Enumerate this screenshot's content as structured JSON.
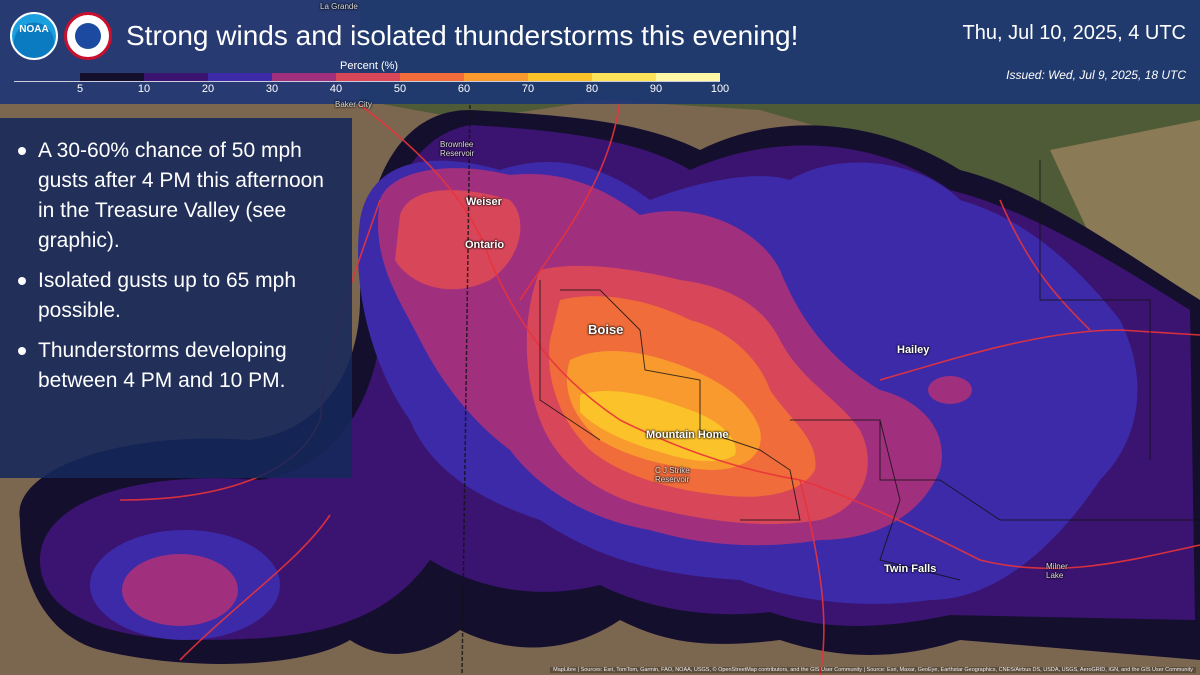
{
  "header": {
    "title": "Strong winds and isolated thunderstorms this evening!",
    "valid_time": "Thu, Jul 10, 2025, 4 UTC",
    "issued": "Issued: Wed, Jul 9, 2025, 18 UTC",
    "noaa_logo_text": "NOAA"
  },
  "legend": {
    "title": "Percent (%)",
    "ticks": [
      "5",
      "10",
      "20",
      "30",
      "40",
      "50",
      "60",
      "70",
      "80",
      "90",
      "100"
    ],
    "colors": [
      "#150f2e",
      "#3a1470",
      "#3c2aa8",
      "#a0307e",
      "#d8465a",
      "#f06c3a",
      "#f89a2e",
      "#fcc22a",
      "#fde25a",
      "#fff8a6"
    ]
  },
  "bullets": [
    "A 30-60% chance of 50 mph gusts after 4 PM this afternoon in the Treasure Valley (see graphic).",
    "Isolated gusts up to 65 mph possible.",
    "Thunderstorms developing between 4 PM and 10 PM."
  ],
  "places": {
    "weiser": "Weiser",
    "ontario": "Ontario",
    "boise": "Boise",
    "mountain_home": "Mountain Home",
    "hailey": "Hailey",
    "twin_falls": "Twin Falls",
    "baker_city": "Baker City",
    "la_grande": "La Grande",
    "brownlee": "Brownlee Reservoir",
    "cj_strike": "C J Strike Reservoir",
    "milner": "Milner Lake"
  },
  "attribution": "MapLibre | Sources: Esri, TomTom, Garmin, FAO, NOAA, USGS, © OpenStreetMap contributors, and the GIS User Community | Source: Esri, Maxar, GeoEye, Earthstar Geographics, CNES/Airbus DS, USDA, USGS, AeroGRID, IGN, and the GIS User Community"
}
